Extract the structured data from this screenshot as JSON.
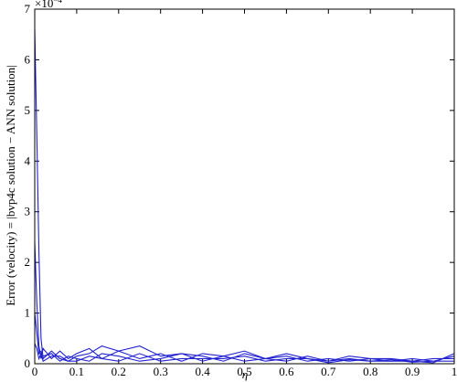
{
  "chart_data": {
    "type": "line",
    "xlabel": "η",
    "ylabel": "Error (velocity) = |bvp4c solution − ANN solution|",
    "y_multiplier": "×10",
    "y_multiplier_exponent": "−4",
    "xlim": [
      0,
      1
    ],
    "ylim": [
      0,
      7
    ],
    "xticks": [
      0,
      0.1,
      0.2,
      0.3,
      0.4,
      0.5,
      0.6,
      0.7,
      0.8,
      0.9,
      1
    ],
    "yticks": [
      0,
      1,
      2,
      3,
      4,
      5,
      6,
      7
    ],
    "grid": false,
    "x": [
      0,
      0.005,
      0.01,
      0.015,
      0.02,
      0.04,
      0.06,
      0.08,
      0.1,
      0.13,
      0.16,
      0.2,
      0.25,
      0.3,
      0.35,
      0.4,
      0.45,
      0.5,
      0.55,
      0.6,
      0.65,
      0.7,
      0.75,
      0.8,
      0.85,
      0.9,
      0.95,
      1
    ],
    "series": [
      {
        "color": "#2020d0",
        "values": [
          6.6,
          4.5,
          2.2,
          0.5,
          0.1,
          0.25,
          0.1,
          0.05,
          0.15,
          0.2,
          0.35,
          0.25,
          0.1,
          0.2,
          0.05,
          0.2,
          0.15,
          0.05,
          0.1,
          0.2,
          0.1,
          0.05,
          0.1,
          0.05,
          0.05,
          0.05,
          0.02,
          0.2
        ]
      },
      {
        "color": "#2020d0",
        "values": [
          2.4,
          1.2,
          0.35,
          0.1,
          0.3,
          0.1,
          0.25,
          0.1,
          0.2,
          0.3,
          0.1,
          0.25,
          0.35,
          0.15,
          0.2,
          0.05,
          0.15,
          0.25,
          0.1,
          0.05,
          0.15,
          0.05,
          0.15,
          0.1,
          0.05,
          0.1,
          0.05,
          0.15
        ]
      },
      {
        "color": "#2020d0",
        "values": [
          1.0,
          0.6,
          0.2,
          0.25,
          0.15,
          0.2,
          0.05,
          0.15,
          0.1,
          0.05,
          0.2,
          0.15,
          0.05,
          0.1,
          0.2,
          0.15,
          0.05,
          0.2,
          0.1,
          0.15,
          0.05,
          0.1,
          0.05,
          0.1,
          0.1,
          0.05,
          0.1,
          0.1
        ]
      },
      {
        "color": "#2020d0",
        "values": [
          0.4,
          0.3,
          0.1,
          0.2,
          0.05,
          0.15,
          0.15,
          0.05,
          0.05,
          0.15,
          0.1,
          0.05,
          0.2,
          0.05,
          0.1,
          0.1,
          0.1,
          0.15,
          0.05,
          0.1,
          0.1,
          0.02,
          0.08,
          0.05,
          0.08,
          0.03,
          0.05,
          0.05
        ]
      }
    ]
  }
}
